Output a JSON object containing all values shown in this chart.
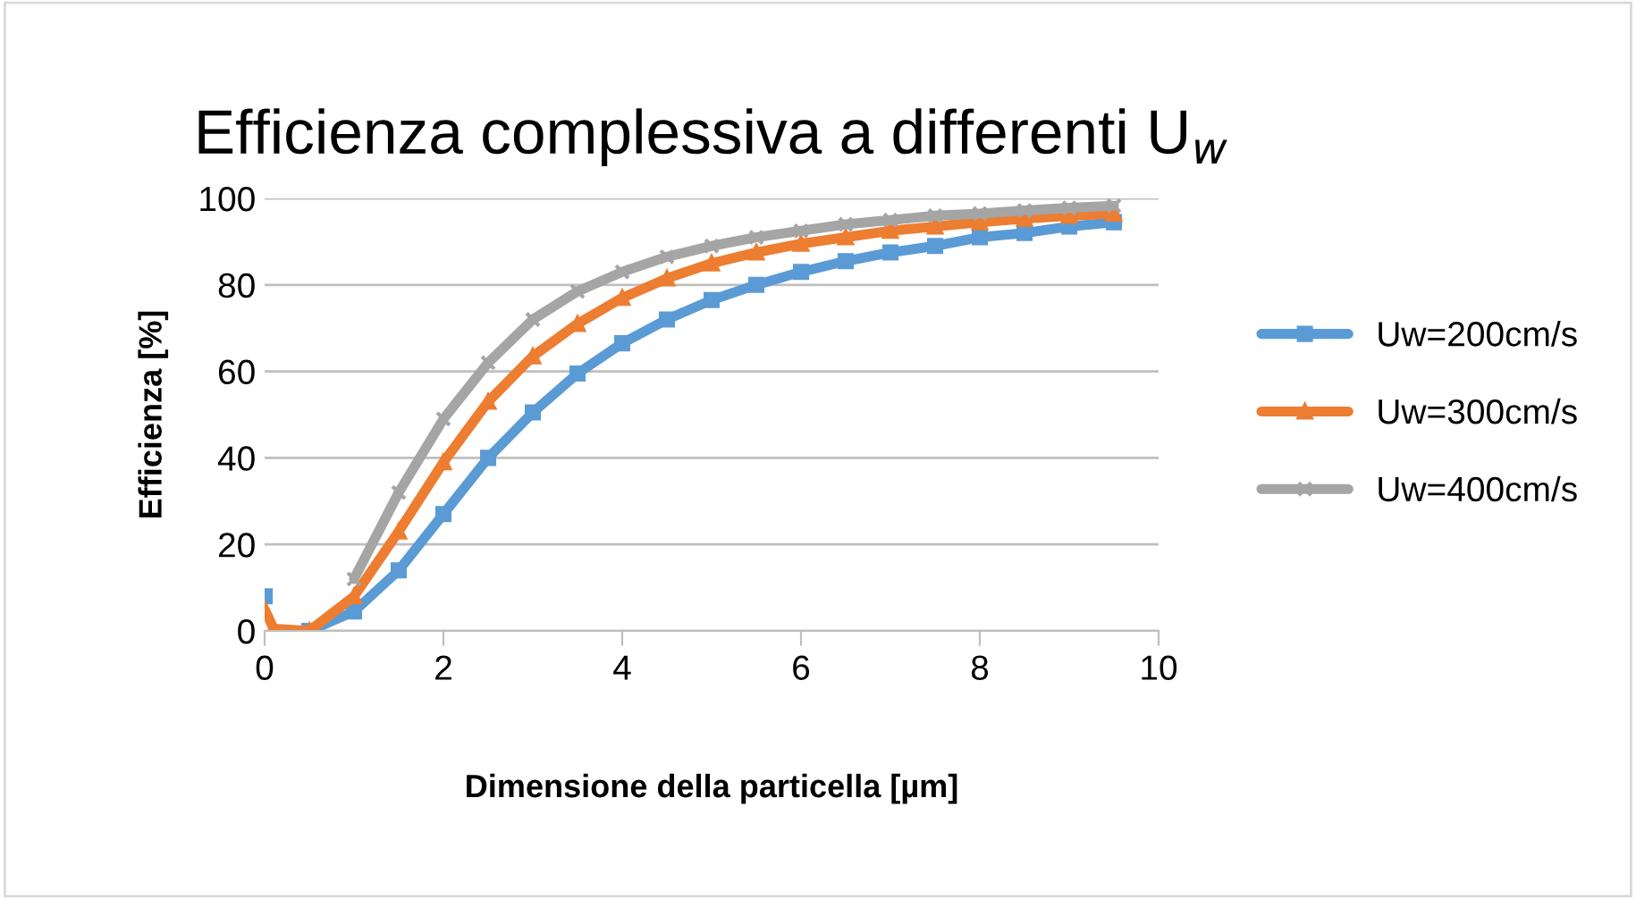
{
  "chart_data": {
    "type": "line",
    "title": "Efficienza complessiva a differenti U$_{w}$",
    "xlabel": "Dimensione della particella [µm]",
    "ylabel": "Efficienza [%]",
    "x": [
      0,
      0.1,
      0.5,
      1,
      1.5,
      2,
      2.5,
      3,
      3.5,
      4,
      4.5,
      5,
      5.5,
      6,
      6.5,
      7,
      7.5,
      8,
      8.5,
      9,
      9.5
    ],
    "series": [
      {
        "name": "Uw=200cm/s",
        "color": "#5b9bd5",
        "marker": "square",
        "values": [
          8,
          null,
          0,
          4.5,
          14,
          27,
          40,
          50.5,
          59.5,
          66.5,
          72,
          76.5,
          80,
          83,
          85.5,
          87.5,
          89,
          91,
          92,
          93.5,
          94.5
        ]
      },
      {
        "name": "Uw=300cm/s",
        "color": "#ed7d31",
        "marker": "triangle",
        "values": [
          5,
          0.5,
          0,
          8,
          23,
          39,
          53,
          63.5,
          71,
          77,
          81.5,
          85,
          87.5,
          89.5,
          91,
          92.5,
          93.5,
          94.5,
          95.3,
          96,
          96.5
        ]
      },
      {
        "name": "Uw=400cm/s",
        "color": "#a5a5a5",
        "marker": "cross",
        "values": [
          null,
          null,
          null,
          12,
          32,
          49,
          62,
          72,
          78.5,
          83,
          86.5,
          89,
          91,
          92.5,
          94,
          95,
          96,
          96.5,
          97.2,
          97.8,
          98.3
        ]
      }
    ],
    "xlim": [
      0,
      10
    ],
    "ylim": [
      0,
      100
    ],
    "xticks": [
      0,
      2,
      4,
      6,
      8,
      10
    ],
    "yticks": [
      0,
      20,
      40,
      60,
      80,
      100
    ],
    "grid": "y",
    "legend": "right",
    "line_style": "solid"
  }
}
